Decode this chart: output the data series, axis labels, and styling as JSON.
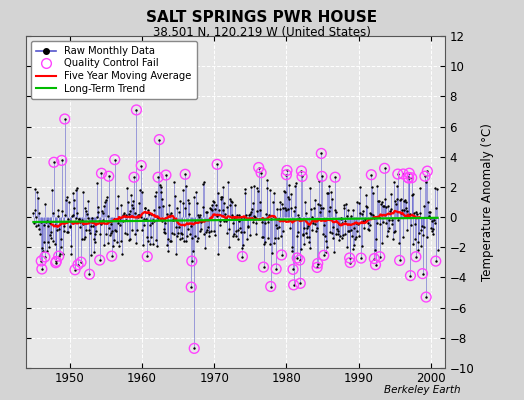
{
  "title": "SALT SPRINGS PWR HOUSE",
  "subtitle": "38.501 N, 120.219 W (United States)",
  "ylabel": "Temperature Anomaly (°C)",
  "credit": "Berkeley Earth",
  "xlim": [
    1944,
    2002
  ],
  "ylim": [
    -10,
    12
  ],
  "yticks": [
    -10,
    -8,
    -6,
    -4,
    -2,
    0,
    2,
    4,
    6,
    8,
    10,
    12
  ],
  "xticks": [
    1950,
    1960,
    1970,
    1980,
    1990,
    2000
  ],
  "bg_color": "#d4d4d4",
  "plot_bg_color": "#e8e8e8",
  "raw_line_color": "#5555cc",
  "raw_dot_color": "#000000",
  "qc_fail_color": "#ff44ff",
  "moving_avg_color": "#ff0000",
  "trend_color": "#00bb00",
  "grid_color": "#ffffff",
  "seed": 42,
  "years_start": 1945,
  "years_end": 2001,
  "noise_std": 1.4,
  "n_qc": 40
}
